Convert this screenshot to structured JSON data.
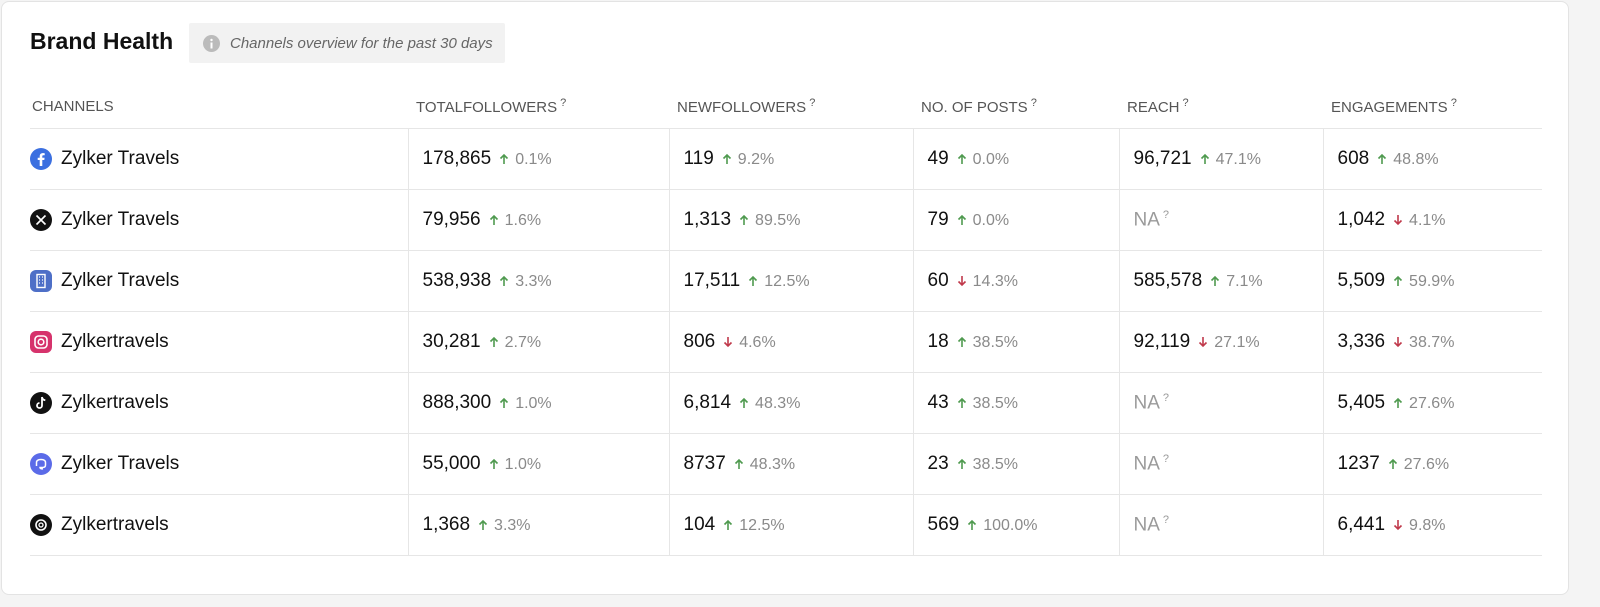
{
  "header": {
    "title": "Brand Health",
    "note": "Channels overview for the past 30 days"
  },
  "table": {
    "columns": [
      "CHANNELS",
      "TOTALFOLLOWERS",
      "NEWFOLLOWERS",
      "NO. OF POSTS",
      "REACH",
      "ENGAGEMENTS"
    ],
    "help": "?",
    "rows": [
      {
        "channel": "Zylker Travels",
        "cells": [
          {
            "value": "178,865",
            "change": "0.1%",
            "trend": "up"
          },
          {
            "value": "119",
            "change": "9.2%",
            "trend": "up"
          },
          {
            "value": "49",
            "change": "0.0%",
            "trend": "up"
          },
          {
            "value": "96,721",
            "change": "47.1%",
            "trend": "up"
          },
          {
            "value": "608",
            "change": "48.8%",
            "trend": "up"
          }
        ]
      },
      {
        "channel": "Zylker Travels",
        "cells": [
          {
            "value": "79,956",
            "change": "1.6%",
            "trend": "up"
          },
          {
            "value": "1,313",
            "change": "89.5%",
            "trend": "up"
          },
          {
            "value": "79",
            "change": "0.0%",
            "trend": "up"
          },
          {
            "value": "NA"
          },
          {
            "value": "1,042",
            "change": "4.1%",
            "trend": "down"
          }
        ]
      },
      {
        "channel": "Zylker Travels",
        "cells": [
          {
            "value": "538,938",
            "change": "3.3%",
            "trend": "up"
          },
          {
            "value": "17,511",
            "change": "12.5%",
            "trend": "up"
          },
          {
            "value": "60",
            "change": "14.3%",
            "trend": "down"
          },
          {
            "value": "585,578",
            "change": "7.1%",
            "trend": "up"
          },
          {
            "value": "5,509",
            "change": "59.9%",
            "trend": "up"
          }
        ]
      },
      {
        "channel": "Zylkertravels",
        "cells": [
          {
            "value": "30,281",
            "change": "2.7%",
            "trend": "up"
          },
          {
            "value": "806",
            "change": "4.6%",
            "trend": "down"
          },
          {
            "value": "18",
            "change": "38.5%",
            "trend": "up"
          },
          {
            "value": "92,119",
            "change": "27.1%",
            "trend": "down"
          },
          {
            "value": "3,336",
            "change": "38.7%",
            "trend": "down"
          }
        ]
      },
      {
        "channel": "Zylkertravels",
        "cells": [
          {
            "value": "888,300",
            "change": "1.0%",
            "trend": "up"
          },
          {
            "value": "6,814",
            "change": "48.3%",
            "trend": "up"
          },
          {
            "value": "43",
            "change": "38.5%",
            "trend": "up"
          },
          {
            "value": "NA"
          },
          {
            "value": "5,405",
            "change": "27.6%",
            "trend": "up"
          }
        ]
      },
      {
        "channel": "Zylker Travels",
        "cells": [
          {
            "value": "55,000",
            "change": "1.0%",
            "trend": "up"
          },
          {
            "value": "8737",
            "change": "48.3%",
            "trend": "up"
          },
          {
            "value": "23",
            "change": "38.5%",
            "trend": "up"
          },
          {
            "value": "NA"
          },
          {
            "value": "1237",
            "change": "27.6%",
            "trend": "up"
          }
        ]
      },
      {
        "channel": "Zylkertravels",
        "cells": [
          {
            "value": "1,368",
            "change": "3.3%",
            "trend": "up"
          },
          {
            "value": "104",
            "change": "12.5%",
            "trend": "up"
          },
          {
            "value": "569",
            "change": "100.0%",
            "trend": "up"
          },
          {
            "value": "NA"
          },
          {
            "value": "6,441",
            "change": "9.8%",
            "trend": "down"
          }
        ]
      }
    ]
  }
}
